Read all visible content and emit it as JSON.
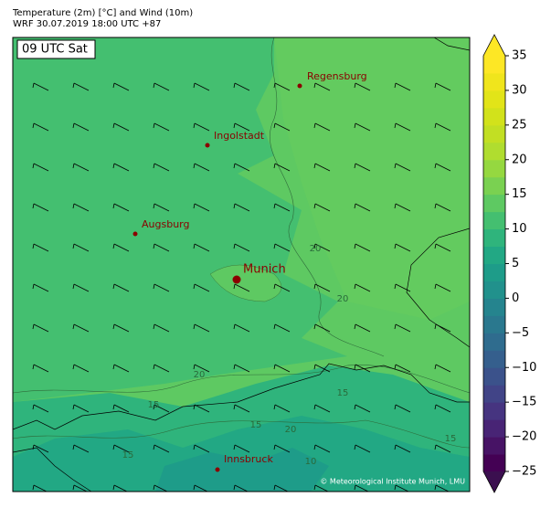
{
  "header": {
    "title": "Temperature (2m) [°C] and Wind (10m)",
    "subtitle": "WRF 30.07.2019 18:00 UTC +87"
  },
  "panel_label": "09 UTC Sat",
  "cities": [
    "Regensburg",
    "Ingolstadt",
    "Augsburg",
    "Munich",
    "Innsbruck"
  ],
  "contour_labels": [
    "20",
    "20",
    "20",
    "15",
    "15",
    "15",
    "10",
    "15",
    "20",
    "15"
  ],
  "credit": "© Meteorological Institute Munich, LMU",
  "colorbar": {
    "ylim": [
      -25,
      35
    ],
    "yticks": [
      {
        "value": -25,
        "label": "−25"
      },
      {
        "value": -20,
        "label": "−20"
      },
      {
        "value": -15,
        "label": "−15"
      },
      {
        "value": -10,
        "label": "−10"
      },
      {
        "value": -5,
        "label": "−5"
      },
      0,
      5,
      10,
      15,
      20,
      25,
      30,
      35
    ],
    "colors": [
      "#440154",
      "#471365",
      "#482475",
      "#463480",
      "#414487",
      "#3b528b",
      "#355f8d",
      "#2f6c8e",
      "#2a788e",
      "#25848e",
      "#21918c",
      "#1e9c89",
      "#22a884",
      "#2fb47c",
      "#44bf70",
      "#5ec962",
      "#7ad151",
      "#95d840",
      "#b0dd2f",
      "#c2df23",
      "#d2e21b",
      "#e2e418",
      "#f0e51c",
      "#fde725"
    ],
    "under_color": "#3b0f4f",
    "over_color": "#fde725"
  }
}
